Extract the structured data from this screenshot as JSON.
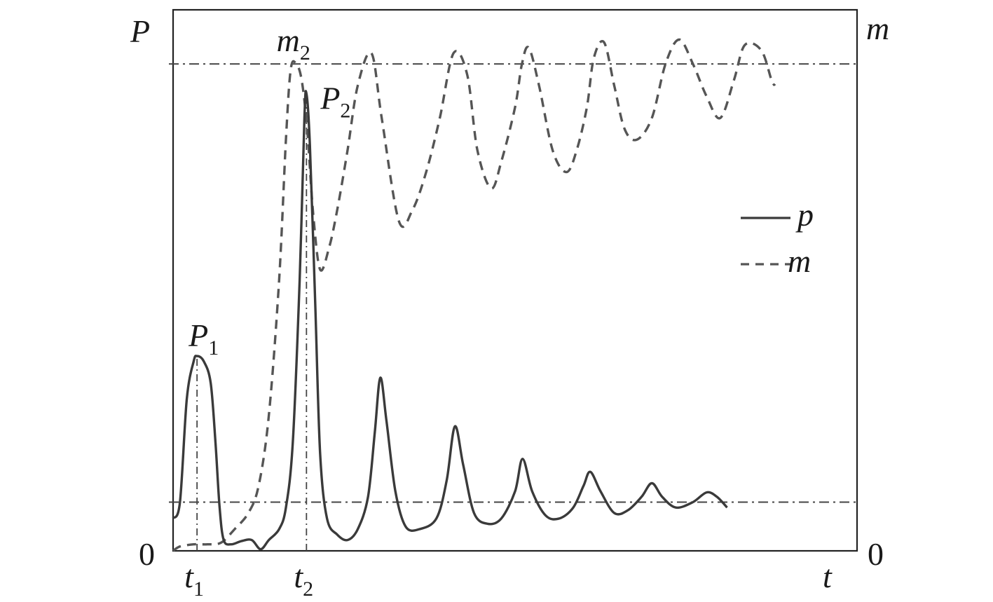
{
  "chart_data": {
    "type": "line",
    "xlabel": "t",
    "ylabel_left": "P",
    "ylabel_right": "m",
    "origin_left": "0",
    "origin_right": "0",
    "x_ticks": [
      {
        "label": "t",
        "sub": "1",
        "x": 0.035
      },
      {
        "label": "t",
        "sub": "2",
        "x": 0.195
      }
    ],
    "annotations": [
      {
        "label": "P",
        "sub": "1",
        "x": 0.035,
        "y": 0.36
      },
      {
        "label": "P",
        "sub": "2",
        "x": 0.195,
        "y": 0.845
      },
      {
        "label": "m",
        "sub": "2",
        "x": 0.18,
        "y": 0.9
      }
    ],
    "reference_lines": [
      {
        "y": 0.9,
        "style": "dash-dot"
      },
      {
        "y": 0.09,
        "style": "dash-dot"
      }
    ],
    "vertical_markers": [
      {
        "x": 0.035,
        "from_y": 0,
        "to_y": 0.36
      },
      {
        "x": 0.195,
        "from_y": 0,
        "to_y": 0.845
      }
    ],
    "xlim": [
      0,
      1
    ],
    "ylim": [
      0,
      1
    ],
    "grid": false,
    "legend_position": "right",
    "series": [
      {
        "name": "p",
        "style": "solid",
        "color": "#3a3a3a",
        "points": [
          [
            0,
            0.06
          ],
          [
            0.01,
            0.09
          ],
          [
            0.02,
            0.28
          ],
          [
            0.03,
            0.35
          ],
          [
            0.035,
            0.36
          ],
          [
            0.045,
            0.35
          ],
          [
            0.055,
            0.31
          ],
          [
            0.062,
            0.2
          ],
          [
            0.068,
            0.08
          ],
          [
            0.074,
            0.02
          ],
          [
            0.085,
            0.012
          ],
          [
            0.1,
            0.018
          ],
          [
            0.115,
            0.02
          ],
          [
            0.128,
            0.003
          ],
          [
            0.14,
            0.02
          ],
          [
            0.155,
            0.04
          ],
          [
            0.165,
            0.08
          ],
          [
            0.175,
            0.2
          ],
          [
            0.185,
            0.5
          ],
          [
            0.192,
            0.8
          ],
          [
            0.195,
            0.845
          ],
          [
            0.2,
            0.75
          ],
          [
            0.208,
            0.45
          ],
          [
            0.215,
            0.18
          ],
          [
            0.225,
            0.06
          ],
          [
            0.24,
            0.03
          ],
          [
            0.255,
            0.02
          ],
          [
            0.27,
            0.04
          ],
          [
            0.285,
            0.1
          ],
          [
            0.295,
            0.22
          ],
          [
            0.303,
            0.32
          ],
          [
            0.312,
            0.24
          ],
          [
            0.325,
            0.11
          ],
          [
            0.34,
            0.045
          ],
          [
            0.36,
            0.04
          ],
          [
            0.385,
            0.06
          ],
          [
            0.4,
            0.13
          ],
          [
            0.412,
            0.23
          ],
          [
            0.424,
            0.16
          ],
          [
            0.44,
            0.07
          ],
          [
            0.46,
            0.05
          ],
          [
            0.48,
            0.06
          ],
          [
            0.5,
            0.11
          ],
          [
            0.511,
            0.17
          ],
          [
            0.525,
            0.11
          ],
          [
            0.545,
            0.065
          ],
          [
            0.565,
            0.06
          ],
          [
            0.585,
            0.08
          ],
          [
            0.6,
            0.12
          ],
          [
            0.61,
            0.146
          ],
          [
            0.625,
            0.11
          ],
          [
            0.645,
            0.07
          ],
          [
            0.665,
            0.075
          ],
          [
            0.685,
            0.1
          ],
          [
            0.7,
            0.125
          ],
          [
            0.715,
            0.1
          ],
          [
            0.735,
            0.08
          ],
          [
            0.76,
            0.09
          ],
          [
            0.78,
            0.108
          ],
          [
            0.795,
            0.1
          ],
          [
            0.81,
            0.08
          ]
        ]
      },
      {
        "name": "m",
        "style": "dashed",
        "color": "#555555",
        "points": [
          [
            0,
            0
          ],
          [
            0.01,
            0.008
          ],
          [
            0.03,
            0.012
          ],
          [
            0.05,
            0.012
          ],
          [
            0.07,
            0.015
          ],
          [
            0.09,
            0.04
          ],
          [
            0.11,
            0.07
          ],
          [
            0.125,
            0.12
          ],
          [
            0.14,
            0.25
          ],
          [
            0.155,
            0.5
          ],
          [
            0.165,
            0.76
          ],
          [
            0.172,
            0.89
          ],
          [
            0.18,
            0.9
          ],
          [
            0.188,
            0.87
          ],
          [
            0.196,
            0.78
          ],
          [
            0.205,
            0.62
          ],
          [
            0.215,
            0.52
          ],
          [
            0.228,
            0.56
          ],
          [
            0.24,
            0.63
          ],
          [
            0.255,
            0.74
          ],
          [
            0.27,
            0.86
          ],
          [
            0.29,
            0.92
          ],
          [
            0.305,
            0.8
          ],
          [
            0.33,
            0.61
          ],
          [
            0.35,
            0.63
          ],
          [
            0.37,
            0.7
          ],
          [
            0.39,
            0.8
          ],
          [
            0.41,
            0.92
          ],
          [
            0.43,
            0.88
          ],
          [
            0.445,
            0.74
          ],
          [
            0.465,
            0.67
          ],
          [
            0.48,
            0.72
          ],
          [
            0.5,
            0.82
          ],
          [
            0.51,
            0.9
          ],
          [
            0.52,
            0.93
          ],
          [
            0.535,
            0.86
          ],
          [
            0.555,
            0.74
          ],
          [
            0.575,
            0.7
          ],
          [
            0.59,
            0.74
          ],
          [
            0.605,
            0.82
          ],
          [
            0.615,
            0.91
          ],
          [
            0.63,
            0.94
          ],
          [
            0.645,
            0.86
          ],
          [
            0.66,
            0.78
          ],
          [
            0.678,
            0.76
          ],
          [
            0.7,
            0.8
          ],
          [
            0.72,
            0.9
          ],
          [
            0.74,
            0.945
          ],
          [
            0.76,
            0.9
          ],
          [
            0.78,
            0.84
          ],
          [
            0.8,
            0.8
          ],
          [
            0.82,
            0.87
          ],
          [
            0.836,
            0.935
          ],
          [
            0.86,
            0.925
          ],
          [
            0.875,
            0.87
          ],
          [
            0.88,
            0.86
          ]
        ]
      }
    ],
    "legend": [
      {
        "name": "p",
        "style": "solid"
      },
      {
        "name": "m",
        "style": "dashed"
      }
    ]
  }
}
